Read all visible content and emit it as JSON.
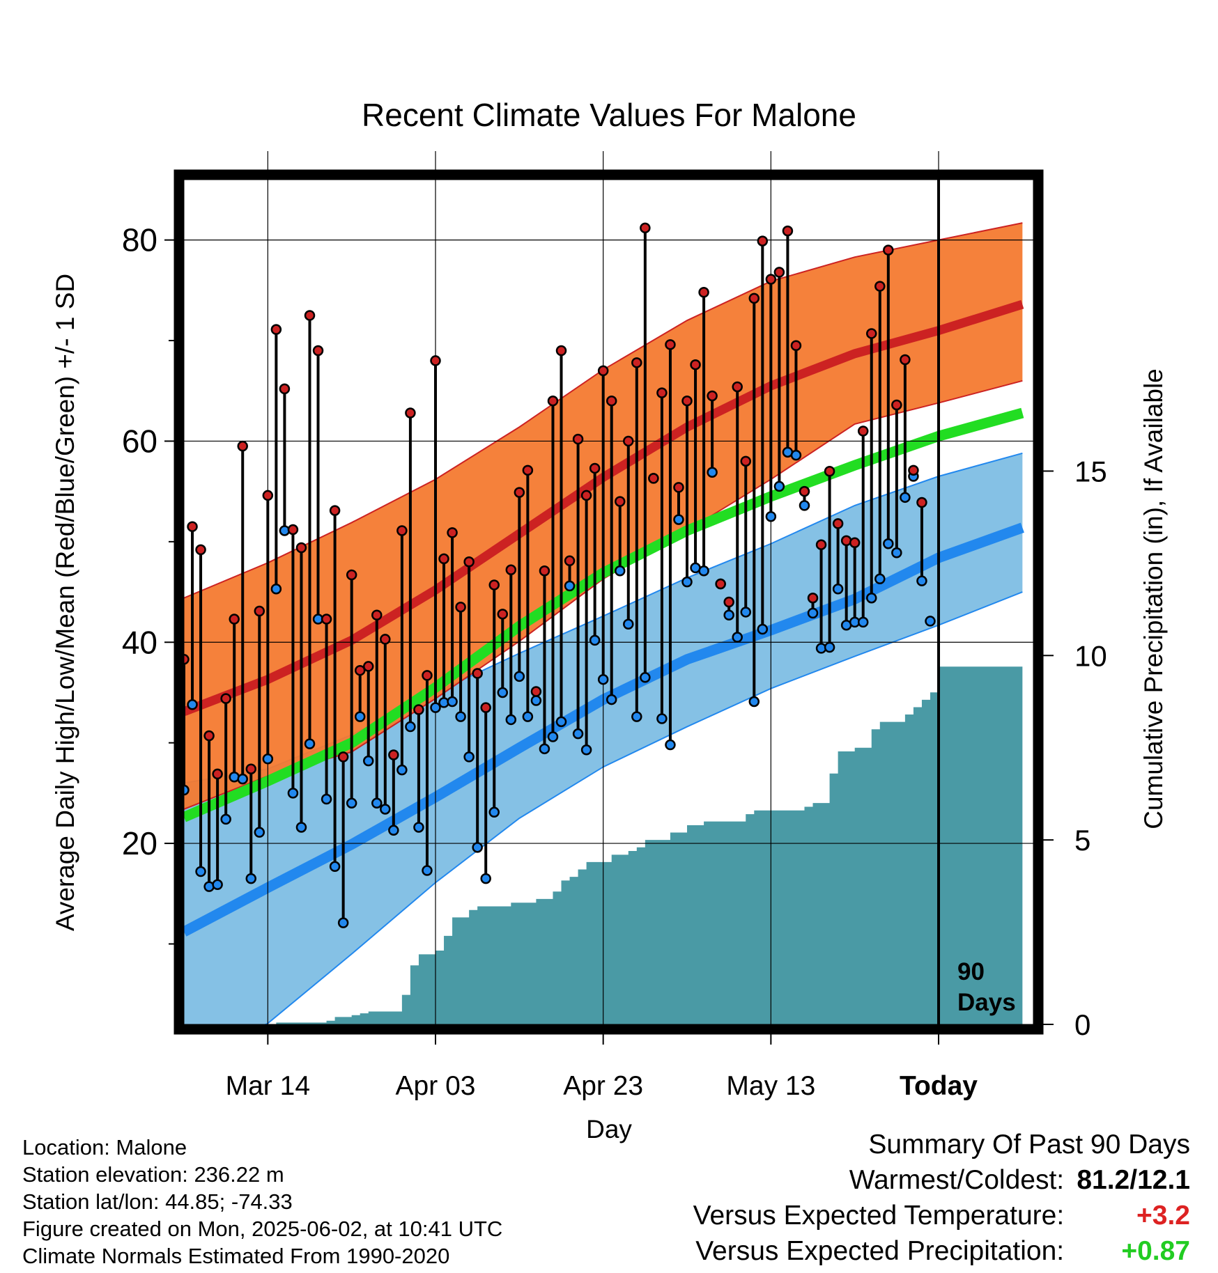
{
  "chart_data": {
    "type": "line",
    "title": "Recent Climate Values For Malone",
    "xlabel": "Day",
    "ylabel": "Average Daily High/Low/Mean (Red/Blue/Green) +/- 1 SD",
    "y2label": "Cumulative Precipitation (in), If Available",
    "x_start_date": "2025-03-04",
    "x_range_days": [
      0,
      90
    ],
    "ylim": [
      2,
      86
    ],
    "y_ticks": [
      20,
      40,
      60,
      80
    ],
    "y2lim": [
      0,
      22.9
    ],
    "y2_ticks": [
      0,
      5,
      10,
      15
    ],
    "x_ticks": [
      {
        "day": 10,
        "label": "Mar 14"
      },
      {
        "day": 30,
        "label": "Apr 03"
      },
      {
        "day": 50,
        "label": "Apr 23"
      },
      {
        "day": 70,
        "label": "May 13"
      },
      {
        "day": 90,
        "label": "Today"
      }
    ],
    "today_marker": {
      "day": 90,
      "label_line1": "90",
      "label_line2": "Days"
    },
    "grid": true,
    "colors": {
      "high_band": "#f47a30",
      "high_mean": "#cc2222",
      "low_band": "#85c1e5",
      "low_mean": "#2288ee",
      "mean": "#22dd22",
      "precip": "#4a9aa5",
      "high_point": "#cc2222",
      "low_point": "#2288ee"
    },
    "normals": {
      "x": [
        0,
        10,
        20,
        30,
        40,
        50,
        60,
        70,
        80,
        90,
        100
      ],
      "high_mean": [
        33.1,
        36.3,
        40.2,
        45.2,
        50.8,
        56.4,
        61.4,
        65.5,
        68.7,
        71.0,
        73.6
      ],
      "high_sd_upper": [
        44.4,
        47.9,
        51.9,
        56.2,
        61.4,
        67.1,
        72.0,
        75.9,
        78.3,
        80.0,
        81.7
      ],
      "high_sd_lower": [
        23.4,
        26.7,
        29.1,
        34.4,
        40.1,
        46.3,
        51.1,
        56.2,
        61.7,
        63.8,
        66.0
      ],
      "low_mean": [
        11.2,
        15.6,
        19.9,
        24.6,
        29.5,
        34.3,
        38.3,
        41.2,
        44.3,
        48.4,
        51.4
      ],
      "low_sd_upper": [
        26.0,
        27.4,
        30.8,
        35.0,
        38.9,
        42.6,
        46.4,
        49.8,
        53.6,
        56.5,
        58.8
      ],
      "low_sd_lower": [
        -2.0,
        2.1,
        9.0,
        16.1,
        22.5,
        27.6,
        31.6,
        35.4,
        38.6,
        41.7,
        45.0
      ],
      "mean": [
        22.6,
        26.2,
        30.0,
        35.5,
        41.6,
        46.9,
        51.1,
        54.5,
        57.6,
        60.5,
        62.8
      ]
    },
    "daily": {
      "x": [
        0,
        1,
        2,
        3,
        4,
        5,
        6,
        7,
        8,
        9,
        10,
        11,
        12,
        13,
        14,
        15,
        16,
        17,
        18,
        19,
        20,
        21,
        22,
        23,
        24,
        25,
        26,
        27,
        28,
        29,
        30,
        31,
        32,
        33,
        34,
        35,
        36,
        37,
        38,
        39,
        40,
        41,
        42,
        43,
        44,
        45,
        46,
        47,
        48,
        49,
        50,
        51,
        52,
        53,
        54,
        55,
        56,
        57,
        58,
        59,
        60,
        61,
        62,
        63,
        64,
        65,
        66,
        67,
        68,
        69,
        70,
        71,
        72,
        73,
        74,
        75,
        76,
        77,
        78,
        79,
        80,
        81,
        82,
        83,
        84,
        85,
        86,
        87,
        88,
        89
      ],
      "high": [
        38.3,
        51.5,
        49.2,
        30.7,
        26.9,
        34.4,
        42.3,
        59.5,
        27.4,
        43.1,
        54.6,
        71.1,
        65.2,
        51.2,
        49.4,
        72.5,
        69.0,
        42.3,
        53.1,
        28.6,
        46.7,
        37.2,
        37.6,
        42.7,
        40.3,
        28.8,
        51.1,
        62.8,
        33.3,
        36.7,
        68.0,
        48.3,
        50.9,
        43.5,
        48.0,
        36.9,
        33.5,
        45.7,
        42.8,
        47.2,
        54.9,
        57.1,
        35.1,
        47.1,
        64.0,
        69.0,
        48.1,
        60.2,
        54.6,
        57.3,
        67.0,
        64.0,
        54.0,
        60.0,
        67.8,
        81.2,
        56.3,
        64.8,
        69.6,
        55.4,
        64.0,
        67.6,
        74.8,
        64.5,
        45.8,
        44.0,
        65.4,
        58.0,
        74.2,
        79.9,
        76.1,
        76.8,
        80.9,
        69.5,
        55.0,
        44.4,
        49.7,
        57.0,
        51.8,
        50.1,
        49.9,
        61.0,
        70.7,
        75.4,
        79.0,
        63.6,
        68.1,
        57.1,
        53.9,
        null
      ],
      "low": [
        25.3,
        33.8,
        17.2,
        15.7,
        15.9,
        22.4,
        26.6,
        26.4,
        16.5,
        21.1,
        28.4,
        45.3,
        51.1,
        25.0,
        21.6,
        29.9,
        42.3,
        24.4,
        17.7,
        12.1,
        24.0,
        32.6,
        28.2,
        24.0,
        23.4,
        21.3,
        27.3,
        31.6,
        21.6,
        17.3,
        33.5,
        34.0,
        34.1,
        32.6,
        28.6,
        19.6,
        16.5,
        23.1,
        35.0,
        32.3,
        36.6,
        32.6,
        34.2,
        29.4,
        30.6,
        32.1,
        45.6,
        30.9,
        29.3,
        40.2,
        36.3,
        34.3,
        47.1,
        41.8,
        32.6,
        36.5,
        56.3,
        32.4,
        29.8,
        52.2,
        46.0,
        47.4,
        47.1,
        56.9,
        45.8,
        42.7,
        40.5,
        43.0,
        34.1,
        41.3,
        52.5,
        55.5,
        58.9,
        58.6,
        53.6,
        42.9,
        39.4,
        39.5,
        45.3,
        41.7,
        42.0,
        42.0,
        44.4,
        46.3,
        49.8,
        48.9,
        54.4,
        56.5,
        46.1,
        42.1
      ]
    },
    "precip": {
      "x": [
        0,
        10,
        11,
        15,
        17,
        18,
        20,
        21,
        22,
        25,
        26,
        27,
        28,
        30,
        31,
        32,
        34,
        35,
        38,
        39,
        40,
        41,
        42,
        44,
        45,
        46,
        47,
        48,
        50,
        51,
        52,
        53,
        54,
        55,
        57,
        58,
        59,
        60,
        62,
        63,
        64,
        65,
        67,
        68,
        70,
        71,
        72,
        73,
        74,
        75,
        76,
        77,
        78,
        79,
        80,
        81,
        82,
        83,
        84,
        85,
        86,
        87,
        88,
        89,
        90,
        100
      ],
      "values": [
        0,
        0,
        0.05,
        0.05,
        0.1,
        0.2,
        0.25,
        0.3,
        0.35,
        0.35,
        0.8,
        1.6,
        1.9,
        2.0,
        2.4,
        2.9,
        3.1,
        3.2,
        3.2,
        3.3,
        3.3,
        3.3,
        3.4,
        3.6,
        3.9,
        4.0,
        4.2,
        4.4,
        4.4,
        4.6,
        4.6,
        4.7,
        4.8,
        5.0,
        5.0,
        5.2,
        5.2,
        5.4,
        5.5,
        5.5,
        5.5,
        5.5,
        5.7,
        5.8,
        5.8,
        5.8,
        5.8,
        5.8,
        5.9,
        6.0,
        6.0,
        6.8,
        7.4,
        7.4,
        7.5,
        7.5,
        8.0,
        8.2,
        8.2,
        8.2,
        8.4,
        8.6,
        8.8,
        9.0,
        9.7,
        9.7
      ]
    }
  },
  "footer": {
    "location": "Location: Malone",
    "elevation": "Station elevation: 236.22 m",
    "latlon": "Station lat/lon: 44.85; -74.33",
    "created": "Figure created on Mon, 2025-06-02, at 10:41 UTC",
    "normals_period": "Climate Normals Estimated From 1990-2020"
  },
  "summary": {
    "heading": "Summary Of Past 90 Days",
    "warm_cold_label": "Warmest/Coldest:",
    "warm_cold_value": "81.2/12.1",
    "temp_label": "Versus Expected Temperature:",
    "temp_value": "+3.2",
    "temp_color": "#dd2222",
    "precip_label": "Versus Expected Precipitation:",
    "precip_value": "+0.87",
    "precip_color": "#22cc22"
  }
}
